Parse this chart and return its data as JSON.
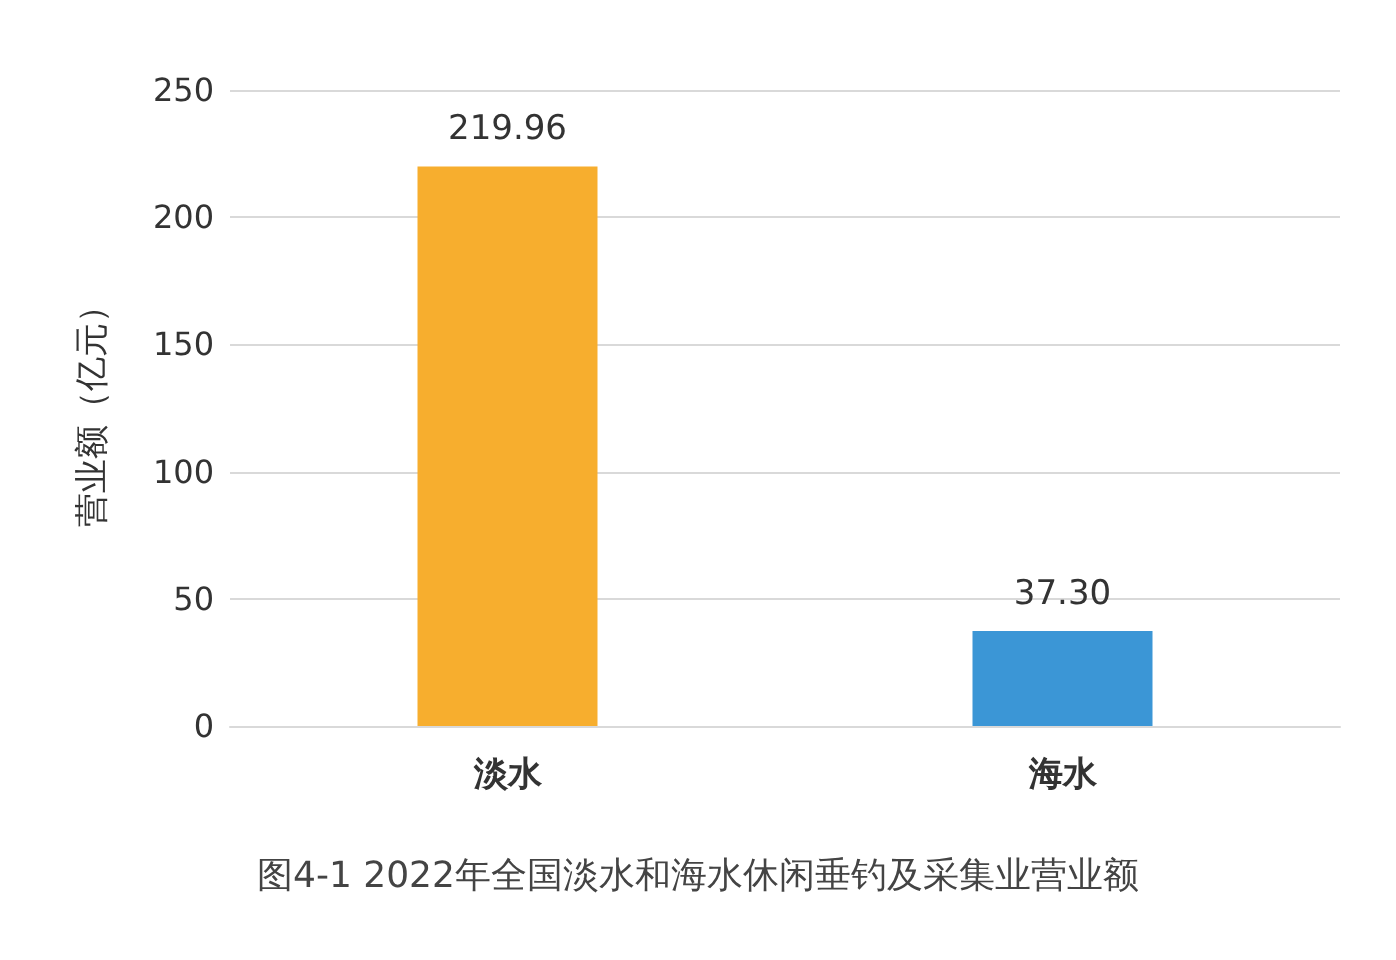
{
  "chart_data": {
    "type": "bar",
    "title": "图4-1 2022年全国淡水和海水休闲垂钓及采集业营业额",
    "ylabel": "营业额（亿元）",
    "categories": [
      "淡水",
      "海水"
    ],
    "values": [
      219.96,
      37.3
    ],
    "value_labels": [
      "219.96",
      "37.30"
    ],
    "colors": [
      "#f7ae2e",
      "#3b96d6"
    ],
    "ylim": [
      0,
      250
    ],
    "yticks": [
      0,
      50,
      100,
      150,
      200,
      250
    ],
    "grid": "y"
  }
}
